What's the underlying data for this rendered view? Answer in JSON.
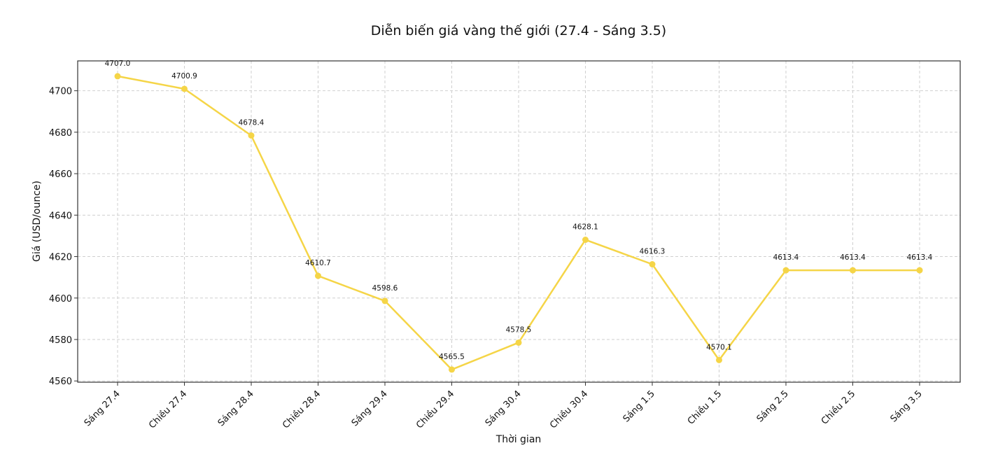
{
  "chart_data": {
    "type": "line",
    "title": "Diễn biến giá vàng thế giới (27.4 - Sáng 3.5)",
    "xlabel": "Thời gian",
    "ylabel": "Giá (USD/ounce)",
    "categories": [
      "Sáng 27.4",
      "Chiều 27.4",
      "Sáng 28.4",
      "Chiều 28.4",
      "Sáng 29.4",
      "Chiều 29.4",
      "Sáng 30.4",
      "Chiều 30.4",
      "Sáng 1.5",
      "Chiều 1.5",
      "Sáng 2.5",
      "Chiều 2.5",
      "Sáng 3.5"
    ],
    "series": [
      {
        "values": [
          4707.0,
          4700.9,
          4678.4,
          4610.7,
          4598.6,
          4565.5,
          4578.5,
          4628.1,
          4616.3,
          4570.1,
          4613.4,
          4613.4,
          4613.4
        ],
        "color": "#f5d547"
      }
    ],
    "data_labels": [
      "4707.0",
      "4700.9",
      "4678.4",
      "4610.7",
      "4598.6",
      "4565.5",
      "4578.5",
      "4628.1",
      "4616.3",
      "4570.1",
      "4613.4",
      "4613.4",
      "4613.4"
    ],
    "ylim": [
      4559.4,
      4714.4
    ],
    "yticks": [
      4560,
      4580,
      4600,
      4620,
      4640,
      4660,
      4680,
      4700
    ],
    "grid": true,
    "legend": "none"
  }
}
